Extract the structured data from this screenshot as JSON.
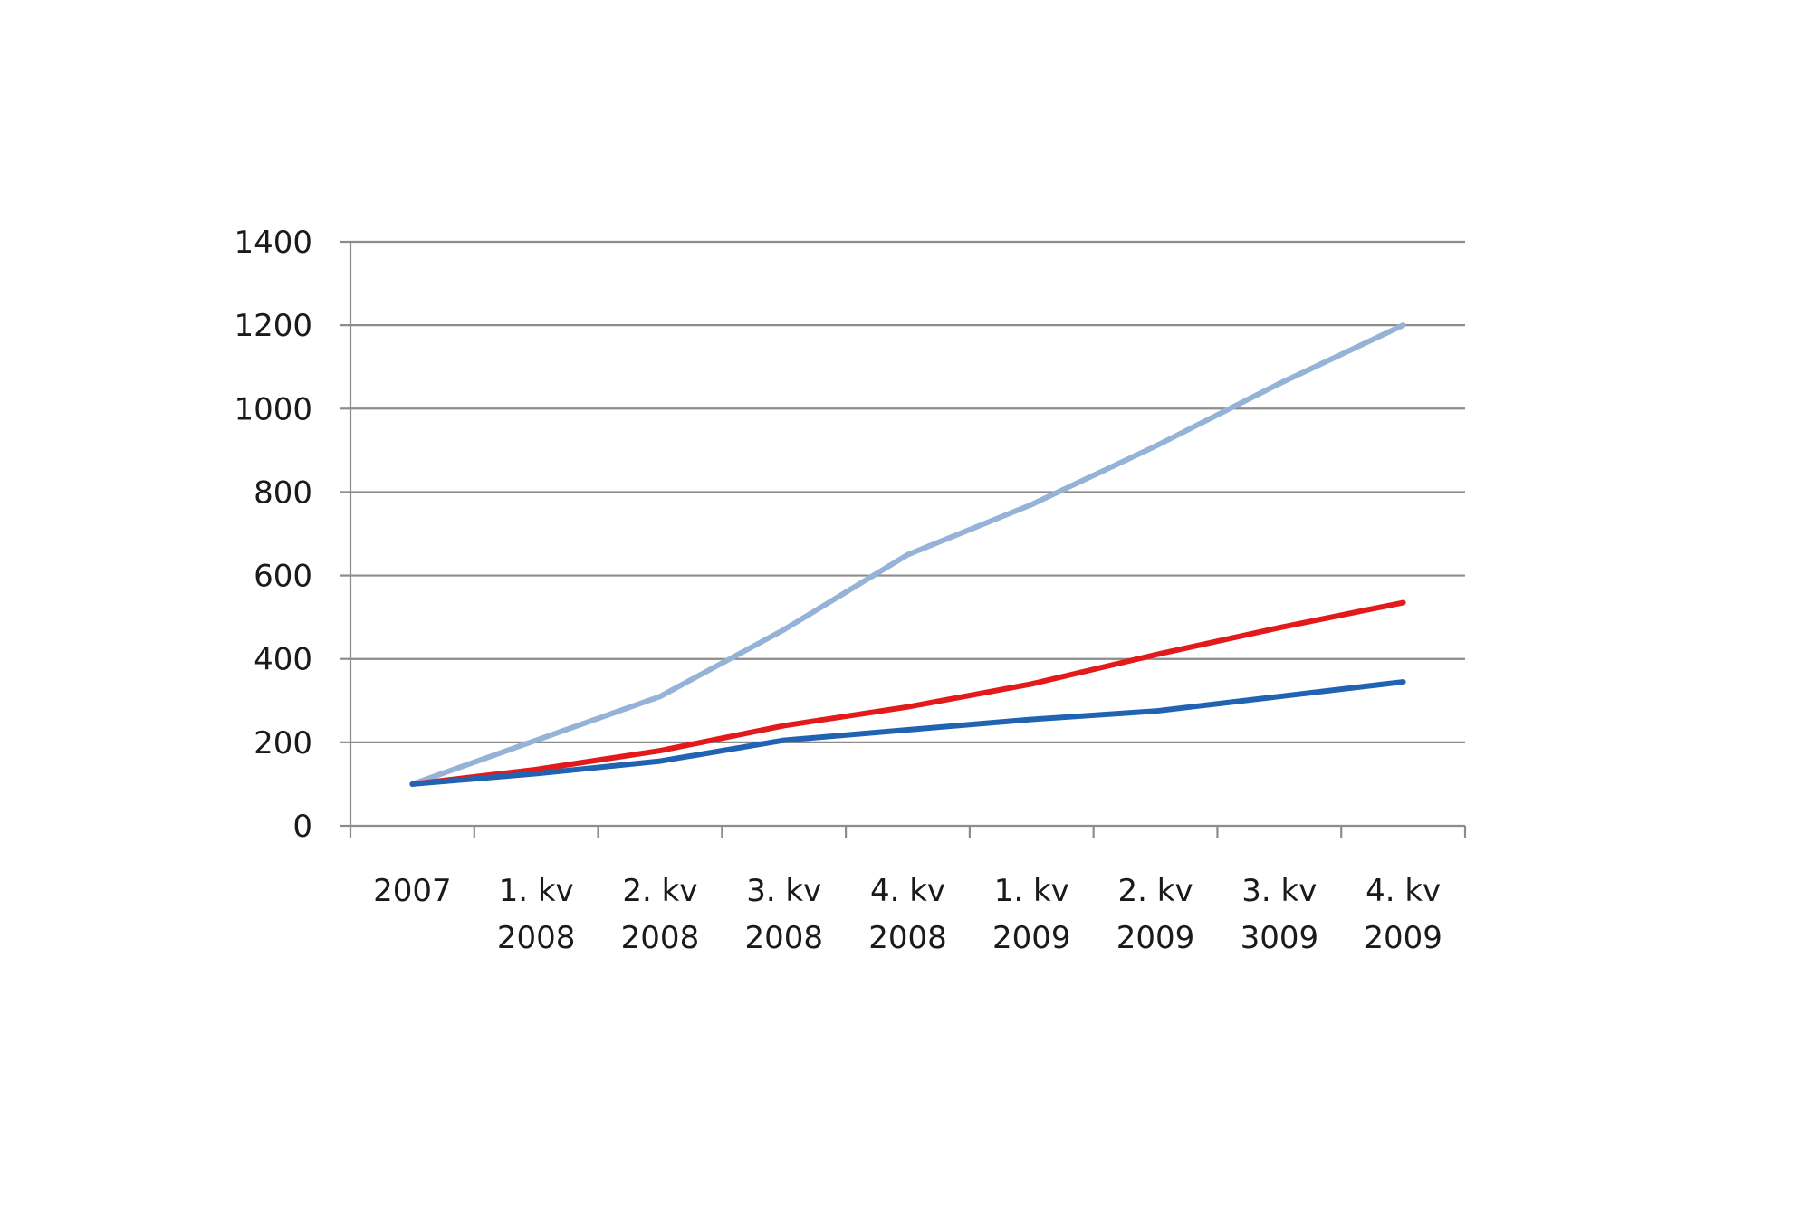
{
  "chart_data": {
    "type": "line",
    "title": "",
    "xlabel": "",
    "ylabel": "",
    "categories": [
      [
        "2007"
      ],
      [
        "1. kv",
        "2008"
      ],
      [
        "2. kv",
        "2008"
      ],
      [
        "3. kv",
        "2008"
      ],
      [
        "4. kv",
        "2008"
      ],
      [
        "1. kv",
        "2009"
      ],
      [
        "2. kv",
        "2009"
      ],
      [
        "3. kv",
        "3009"
      ],
      [
        "4. kv",
        "2009"
      ]
    ],
    "ylim": [
      0,
      1400
    ],
    "yticks": [
      0,
      200,
      400,
      600,
      800,
      1000,
      1200,
      1400
    ],
    "grid": true,
    "legend": "none",
    "series": [
      {
        "color": "#95b3d7",
        "values": [
          100,
          205,
          310,
          470,
          650,
          770,
          910,
          1060,
          1200
        ]
      },
      {
        "color": "#e31a1c",
        "values": [
          100,
          135,
          180,
          240,
          285,
          340,
          410,
          475,
          535
        ]
      },
      {
        "color": "#1f63b2",
        "values": [
          100,
          125,
          155,
          205,
          230,
          255,
          275,
          310,
          345
        ]
      }
    ]
  }
}
